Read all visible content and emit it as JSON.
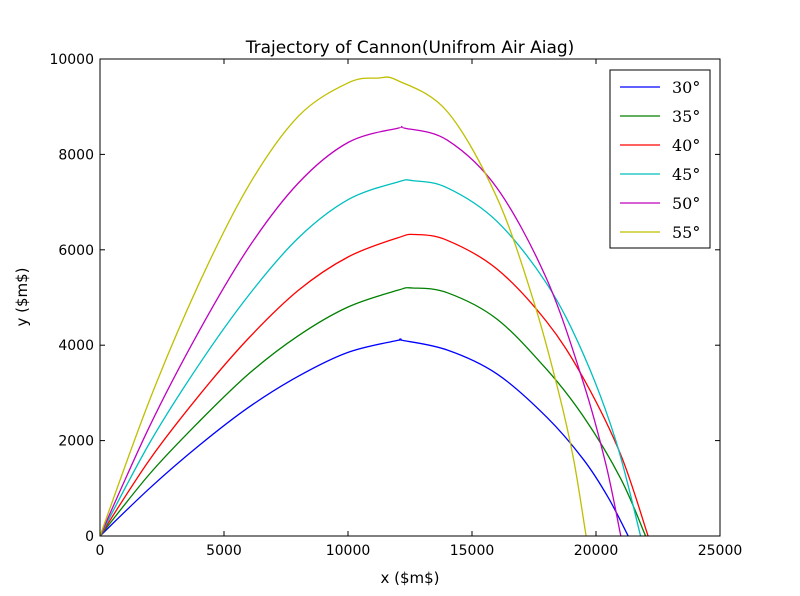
{
  "chart_data": {
    "type": "line",
    "title": "Trajectory of Cannon(Unifrom Air Aiag)",
    "xlabel": "x ($m$)",
    "ylabel": "y ($m$)",
    "xlim": [
      0,
      25000
    ],
    "ylim": [
      0,
      10000
    ],
    "xticks": [
      0,
      5000,
      10000,
      15000,
      20000,
      25000
    ],
    "yticks": [
      0,
      2000,
      4000,
      6000,
      8000,
      10000
    ],
    "grid": false,
    "legend_position": "top-right",
    "series": [
      {
        "name": "30°",
        "color": "#0000ff",
        "x": [
          0,
          2000,
          4000,
          6000,
          8000,
          10000,
          12000,
          12200,
          14000,
          16000,
          18000,
          19500,
          20500,
          21300
        ],
        "y": [
          0,
          1000,
          1900,
          2700,
          3350,
          3850,
          4100,
          4100,
          3900,
          3400,
          2500,
          1600,
          800,
          0
        ]
      },
      {
        "name": "35°",
        "color": "#008000",
        "x": [
          0,
          2000,
          4000,
          6000,
          8000,
          10000,
          12000,
          12600,
          14000,
          16000,
          18000,
          19500,
          21000,
          22000
        ],
        "y": [
          0,
          1300,
          2400,
          3400,
          4200,
          4800,
          5150,
          5200,
          5100,
          4550,
          3500,
          2500,
          1200,
          0
        ]
      },
      {
        "name": "40°",
        "color": "#ff0000",
        "x": [
          0,
          2000,
          4000,
          6000,
          8000,
          10000,
          12000,
          12700,
          14000,
          16000,
          18000,
          19500,
          21000,
          22100
        ],
        "y": [
          0,
          1600,
          2950,
          4150,
          5150,
          5850,
          6250,
          6320,
          6200,
          5600,
          4500,
          3300,
          1700,
          0
        ]
      },
      {
        "name": "45°",
        "color": "#00bfbf",
        "x": [
          0,
          2000,
          4000,
          6000,
          8000,
          10000,
          12000,
          12600,
          14000,
          16000,
          18000,
          19500,
          20800,
          21800
        ],
        "y": [
          0,
          1950,
          3600,
          5050,
          6250,
          7050,
          7420,
          7450,
          7300,
          6600,
          5300,
          3800,
          2000,
          0
        ]
      },
      {
        "name": "50°",
        "color": "#bf00bf",
        "x": [
          0,
          2000,
          4000,
          6000,
          8000,
          10000,
          12000,
          12300,
          14000,
          16000,
          18000,
          19500,
          20400,
          21000
        ],
        "y": [
          0,
          2300,
          4300,
          6050,
          7400,
          8250,
          8550,
          8550,
          8300,
          7300,
          5400,
          3200,
          1500,
          0
        ]
      },
      {
        "name": "55°",
        "color": "#bfbf00",
        "x": [
          0,
          2000,
          4000,
          6000,
          8000,
          10000,
          11200,
          12000,
          14000,
          16000,
          17500,
          18500,
          19100,
          19600
        ],
        "y": [
          0,
          2850,
          5300,
          7350,
          8800,
          9500,
          9600,
          9550,
          8900,
          7100,
          4900,
          3000,
          1600,
          0
        ]
      }
    ]
  }
}
